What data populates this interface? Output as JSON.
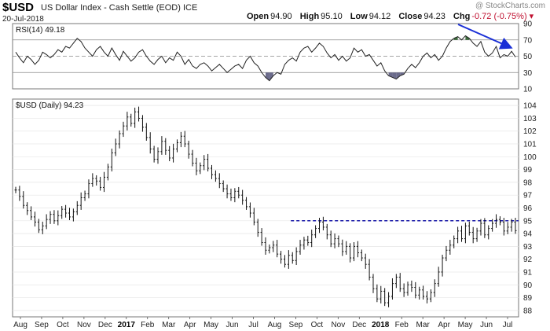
{
  "header": {
    "ticker": "$USD",
    "description": "US Dollar Index - Cash Settle (EOD) ICE",
    "date": "20-Jul-2018",
    "open_label": "Open",
    "open": "94.90",
    "high_label": "High",
    "high": "95.10",
    "low_label": "Low",
    "low": "94.12",
    "close_label": "Close",
    "close": "94.23",
    "chg_label": "Chg",
    "chg": "-0.72 (-0.75%)",
    "watermark": "@ StockCharts.com"
  },
  "colors": {
    "price": "#111111",
    "rsi_line": "#222222",
    "rsi_overbought_fill": "#3a6b3a",
    "rsi_oversold_fill": "#6b6b8b",
    "resistance_line": "#1a1aa8",
    "arrow": "#1a2fd6",
    "chg_text": "#c01030"
  },
  "chart_data": [
    {
      "type": "line",
      "panel": "RSI",
      "label": "RSI(14) 49.18",
      "ylim": [
        10,
        90
      ],
      "y_ticks": [
        90,
        70,
        50,
        30,
        10
      ],
      "levels": [
        70,
        50,
        30
      ],
      "x_ticks": [
        "Aug",
        "Sep",
        "Oct",
        "Nov",
        "Dec",
        "2017",
        "Feb",
        "Mar",
        "Apr",
        "May",
        "Jun",
        "Jul",
        "Aug",
        "Sep",
        "Oct",
        "Nov",
        "Dec",
        "2018",
        "Feb",
        "Mar",
        "Apr",
        "May",
        "Jun",
        "Jul"
      ],
      "series": [
        {
          "values": [
            55,
            48,
            42,
            50,
            46,
            40,
            45,
            55,
            52,
            48,
            52,
            58,
            55,
            62,
            60,
            66,
            72,
            68,
            60,
            55,
            50,
            58,
            62,
            55,
            50,
            60,
            52,
            45,
            56,
            50,
            44,
            48,
            55,
            58,
            50,
            44,
            40,
            46,
            50,
            42,
            48,
            45,
            55,
            50,
            40,
            46,
            38,
            35,
            40,
            42,
            38,
            32,
            36,
            40,
            35,
            30,
            34,
            38,
            40,
            35,
            45,
            50,
            42,
            38,
            30,
            24,
            20,
            26,
            30,
            28,
            40,
            45,
            48,
            44,
            55,
            60,
            62,
            55,
            60,
            66,
            62,
            54,
            48,
            52,
            45,
            50,
            44,
            48,
            60,
            55,
            58,
            50,
            52,
            45,
            38,
            42,
            32,
            26,
            24,
            22,
            26,
            28,
            35,
            40,
            36,
            42,
            50,
            54,
            48,
            52,
            45,
            50,
            60,
            68,
            72,
            74,
            70,
            75,
            72,
            66,
            62,
            68,
            55,
            50,
            54,
            62,
            48,
            52,
            50,
            56,
            49
          ]
        }
      ]
    },
    {
      "type": "bar",
      "panel": "Price",
      "label": "$USD (Daily) 94.23",
      "ylim": [
        87.5,
        104.5
      ],
      "y_ticks": [
        104,
        103,
        102,
        101,
        100,
        99,
        98,
        97,
        96,
        95,
        94,
        93,
        92,
        91,
        90,
        89,
        88
      ],
      "x_ticks": [
        "Aug",
        "Sep",
        "Oct",
        "Nov",
        "Dec",
        "2017",
        "Feb",
        "Mar",
        "Apr",
        "May",
        "Jun",
        "Jul",
        "Aug",
        "Sep",
        "Oct",
        "Nov",
        "Dec",
        "2018",
        "Feb",
        "Mar",
        "Apr",
        "May",
        "Jun",
        "Jul"
      ],
      "x_ticks_bold": [
        "2017",
        "2018"
      ],
      "resistance_level": 95.0,
      "series": [
        {
          "name": "close",
          "values": [
            97.4,
            96.9,
            96.2,
            95.8,
            95.3,
            94.9,
            94.3,
            94.6,
            95.1,
            95.5,
            95.0,
            95.4,
            95.9,
            95.6,
            95.3,
            95.7,
            96.2,
            96.8,
            97.1,
            97.9,
            98.3,
            98.1,
            97.6,
            98.4,
            99.2,
            100.3,
            101.0,
            101.8,
            102.4,
            103.1,
            102.6,
            103.5,
            103.0,
            102.3,
            101.5,
            100.6,
            99.8,
            100.4,
            101.2,
            100.5,
            99.9,
            100.6,
            101.1,
            101.6,
            101.0,
            100.2,
            99.5,
            98.9,
            99.3,
            99.8,
            99.1,
            98.6,
            98.3,
            97.9,
            97.5,
            97.1,
            96.8,
            97.3,
            97.0,
            96.6,
            96.1,
            95.6,
            94.9,
            94.1,
            93.3,
            92.7,
            92.9,
            93.1,
            92.4,
            92.0,
            91.6,
            92.3,
            91.9,
            92.6,
            93.1,
            93.5,
            93.3,
            93.9,
            94.4,
            94.9,
            94.5,
            93.9,
            93.2,
            93.6,
            93.2,
            92.6,
            93.0,
            92.1,
            93.0,
            92.5,
            92.1,
            91.6,
            90.6,
            89.7,
            88.9,
            89.5,
            88.6,
            89.1,
            90.1,
            90.6,
            89.7,
            89.4,
            90.0,
            89.8,
            89.2,
            89.6,
            89.1,
            88.9,
            89.4,
            90.1,
            91.0,
            92.1,
            92.7,
            93.1,
            93.6,
            94.2,
            93.6,
            94.6,
            94.1,
            93.6,
            94.2,
            94.8,
            93.9,
            94.4,
            94.8,
            95.1,
            94.9,
            94.2,
            94.5,
            94.9,
            94.23
          ]
        }
      ]
    }
  ]
}
